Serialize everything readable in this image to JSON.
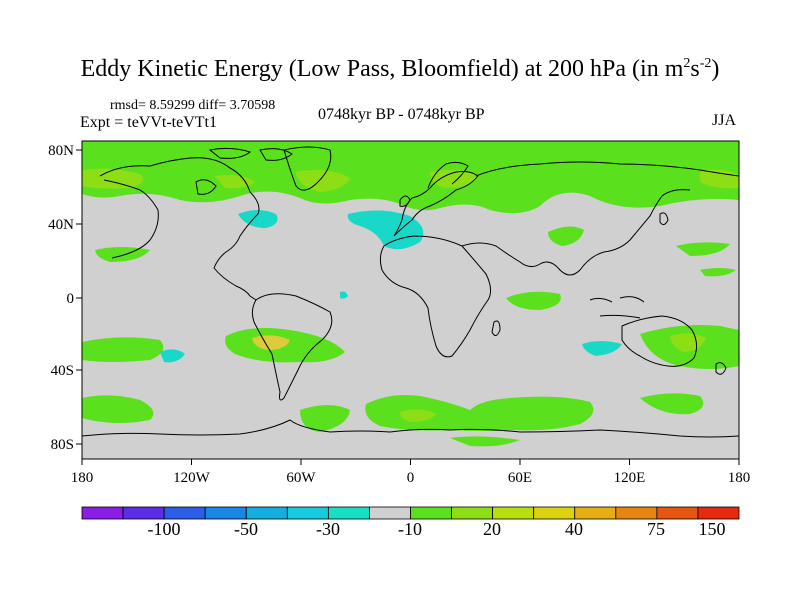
{
  "title": {
    "main": "Eddy Kinetic Energy (Low Pass, Bloomfield) at 200 hPa (in m",
    "sup1": "2",
    "mid": "s",
    "sup2": "-2",
    "end": ")"
  },
  "stats": "rmsd= 8.59299 diff= 3.70598",
  "expt": "Expt = teVVt-teVTt1",
  "period": "0748kyr BP - 0748kyr BP",
  "season": "JJA",
  "axes": {
    "lon_labels": [
      "180",
      "120W",
      "60W",
      "0",
      "60E",
      "120E",
      "180"
    ],
    "lat_labels": [
      "80N",
      "40N",
      "0",
      "40S",
      "80S"
    ]
  },
  "colorbar": {
    "colors": [
      "#8a1ee6",
      "#5a2ee6",
      "#2a5ee6",
      "#1a86e6",
      "#12aee0",
      "#16cae0",
      "#18dec4",
      "#d0d0d0",
      "#5ae01c",
      "#8ede16",
      "#b8de10",
      "#dcd210",
      "#e6ae10",
      "#e6860e",
      "#e6560e",
      "#e62a0e"
    ],
    "labels": [
      "-100",
      "-50",
      "-30",
      "-10",
      "20",
      "40",
      "75",
      "150"
    ]
  },
  "fill_colors": {
    "land_sea_background": "#d0d0d0",
    "positive_low": "#5ae01c",
    "positive_mid": "#8ede16",
    "positive_high": "#dccb3c",
    "negative_low": "#1ad8c8"
  }
}
